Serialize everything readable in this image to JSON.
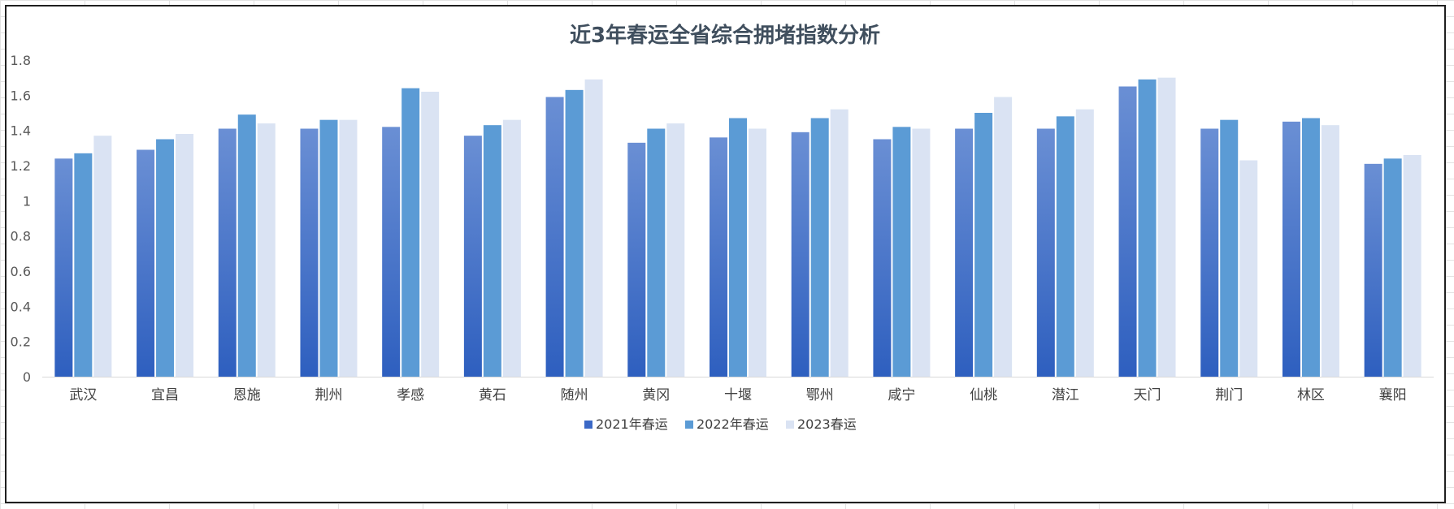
{
  "chart_data": {
    "type": "bar",
    "title": "近3年春运全省综合拥堵指数分析",
    "xlabel": "",
    "ylabel": "",
    "ylim": [
      0,
      1.8
    ],
    "yticks": [
      "0",
      "0.2",
      "0.4",
      "0.6",
      "0.8",
      "1",
      "1.2",
      "1.4",
      "1.6",
      "1.8"
    ],
    "grid": false,
    "legend_position": "bottom",
    "categories": [
      "武汉",
      "宜昌",
      "恩施",
      "荆州",
      "孝感",
      "黄石",
      "随州",
      "黄冈",
      "十堰",
      "鄂州",
      "咸宁",
      "仙桃",
      "潜江",
      "天门",
      "荆门",
      "林区",
      "襄阳"
    ],
    "series": [
      {
        "name": "2021年春运",
        "color": "#4472c4",
        "values": [
          1.24,
          1.29,
          1.41,
          1.41,
          1.42,
          1.37,
          1.59,
          1.33,
          1.36,
          1.39,
          1.35,
          1.41,
          1.41,
          1.65,
          1.41,
          1.45,
          1.21
        ]
      },
      {
        "name": "2022年春运",
        "color": "#5b9bd5",
        "values": [
          1.27,
          1.35,
          1.49,
          1.46,
          1.64,
          1.43,
          1.63,
          1.41,
          1.47,
          1.47,
          1.42,
          1.5,
          1.48,
          1.69,
          1.46,
          1.47,
          1.24
        ]
      },
      {
        "name": "2023春运",
        "color": "#dae3f3",
        "values": [
          1.37,
          1.38,
          1.44,
          1.46,
          1.62,
          1.46,
          1.69,
          1.44,
          1.41,
          1.52,
          1.41,
          1.59,
          1.52,
          1.7,
          1.23,
          1.43,
          1.26
        ]
      }
    ]
  }
}
